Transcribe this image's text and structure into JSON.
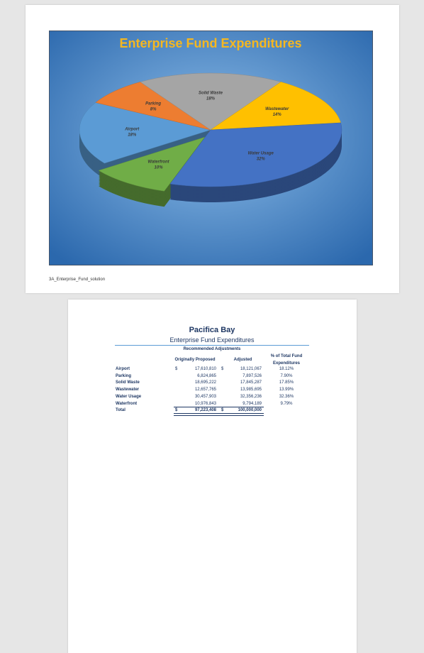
{
  "chart_data": {
    "type": "pie",
    "title": "Enterprise Fund Expenditures",
    "categories": [
      "Airport",
      "Parking",
      "Solid Waste",
      "Wastewater",
      "Water Usage",
      "Waterfront"
    ],
    "values": [
      18,
      8,
      18,
      14,
      32,
      10
    ],
    "value_labels": [
      "18%",
      "8%",
      "18%",
      "14%",
      "32%",
      "10%"
    ],
    "colors": [
      "#5b9bd5",
      "#ed7d31",
      "#a5a5a5",
      "#ffc000",
      "#4472c4",
      "#70ad47"
    ],
    "exploded": "Waterfront"
  },
  "footer": "3A_Enterprise_Fund_solution",
  "table": {
    "title": "Pacifica Bay",
    "subtitle": "Enterprise Fund Expenditures",
    "caption": "Recommended Adjustments",
    "columns": [
      "Originally Proposed",
      "Adjusted",
      "% of Total Fund Expenditures"
    ],
    "currency_symbol": "$",
    "rows": [
      {
        "label": "Airport",
        "proposed": "17,610,810",
        "adjusted": "18,121,067",
        "percent": "18.12%"
      },
      {
        "label": "Parking",
        "proposed": "6,824,865",
        "adjusted": "7,897,526",
        "percent": "7.90%"
      },
      {
        "label": "Solid Waste",
        "proposed": "18,695,222",
        "adjusted": "17,845,287",
        "percent": "17.85%"
      },
      {
        "label": "Wastewater",
        "proposed": "12,657,765",
        "adjusted": "13,985,695",
        "percent": "13.99%"
      },
      {
        "label": "Water Usage",
        "proposed": "30,457,903",
        "adjusted": "32,356,236",
        "percent": "32.36%"
      },
      {
        "label": "Waterfront",
        "proposed": "10,976,843",
        "adjusted": "9,794,189",
        "percent": "9.79%"
      }
    ],
    "total": {
      "label": "Total",
      "proposed": "97,223,408",
      "adjusted": "100,000,000"
    }
  }
}
